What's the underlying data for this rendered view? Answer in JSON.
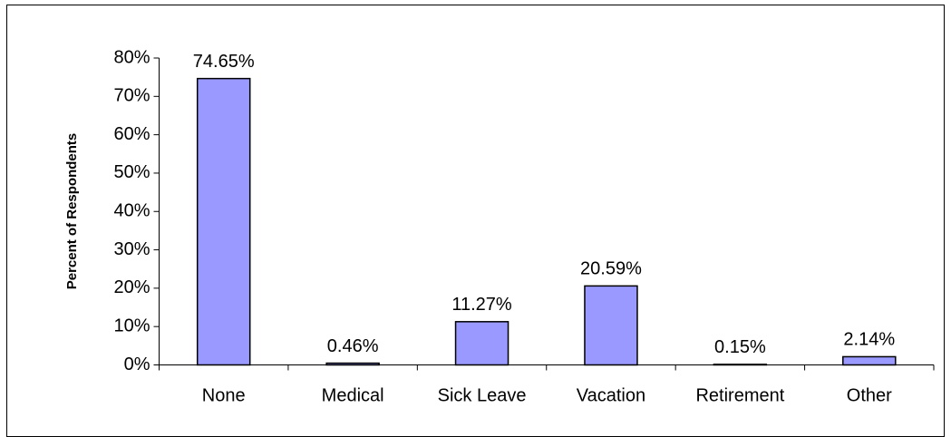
{
  "chart_data": {
    "type": "bar",
    "y_axis_label": "Percent of Respondents",
    "categories": [
      "None",
      "Medical",
      "Sick Leave",
      "Vacation",
      "Retirement",
      "Other"
    ],
    "values": [
      74.65,
      0.46,
      11.27,
      20.59,
      0.15,
      2.14
    ],
    "value_labels": [
      "74.65%",
      "0.46%",
      "11.27%",
      "20.59%",
      "0.15%",
      "2.14%"
    ],
    "color": "#9999ff",
    "ylim": [
      0,
      80
    ],
    "yticks": [
      {
        "value": 0,
        "label": "0%"
      },
      {
        "value": 10,
        "label": "10%"
      },
      {
        "value": 20,
        "label": "20%"
      },
      {
        "value": 30,
        "label": "30%"
      },
      {
        "value": 40,
        "label": "40%"
      },
      {
        "value": 50,
        "label": "50%"
      },
      {
        "value": 60,
        "label": "60%"
      },
      {
        "value": 70,
        "label": "70%"
      },
      {
        "value": 80,
        "label": "80%"
      }
    ],
    "grid": false
  }
}
